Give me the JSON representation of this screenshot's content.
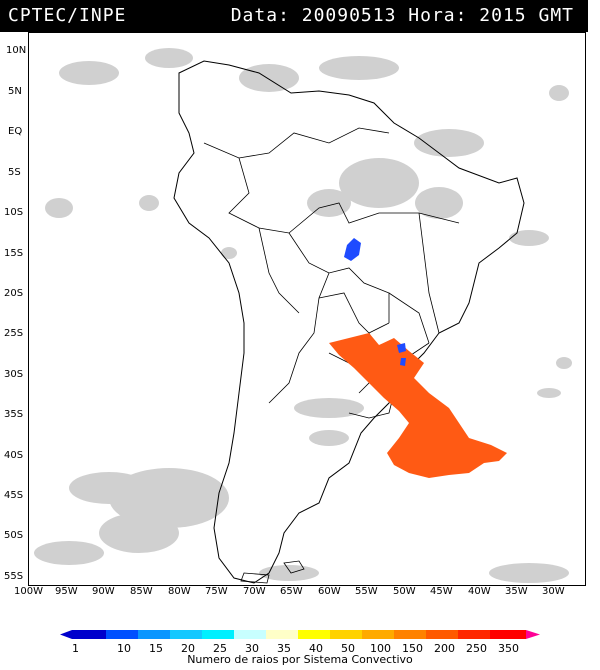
{
  "header": {
    "source": "CPTEC/INPE",
    "timestamp": "Data: 20090513 Hora: 2015 GMT"
  },
  "map": {
    "lat_labels": [
      "10N",
      "5N",
      "EQ",
      "5S",
      "10S",
      "15S",
      "20S",
      "25S",
      "30S",
      "35S",
      "40S",
      "45S",
      "50S",
      "55S"
    ],
    "lon_labels": [
      "100W",
      "95W",
      "90W",
      "85W",
      "80W",
      "75W",
      "70W",
      "65W",
      "60W",
      "55W",
      "50W",
      "45W",
      "40W",
      "35W",
      "30W"
    ],
    "colors": {
      "cloud": "#c8c8c8",
      "orange_system": "#ff5a14",
      "blue_system": "#1e4bff",
      "outline": "#000000"
    }
  },
  "legend": {
    "ticks": [
      "1",
      "10",
      "15",
      "20",
      "25",
      "30",
      "35",
      "40",
      "50",
      "100",
      "150",
      "200",
      "250",
      "350"
    ],
    "title": "Numero de raios por Sistema Convectivo",
    "colors": [
      "#0000cc",
      "#0050ff",
      "#0a96ff",
      "#14c8ff",
      "#00f0ff",
      "#c8ffff",
      "#ffffc8",
      "#ffff00",
      "#ffd200",
      "#ffaa00",
      "#ff8200",
      "#ff5a00",
      "#ff2800",
      "#ff0000",
      "#ff0096"
    ]
  }
}
